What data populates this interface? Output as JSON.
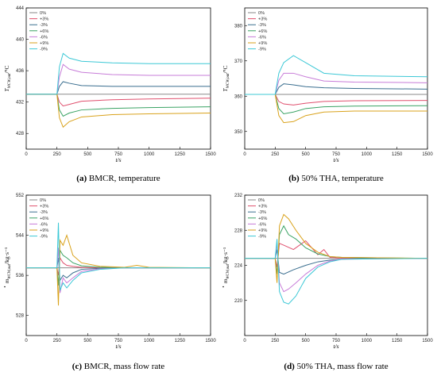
{
  "colors": {
    "0%": "#8a8a8a",
    "+3%": "#e0506e",
    "-3%": "#3a6e8f",
    "+6%": "#3aa364",
    "-6%": "#c77cd8",
    "+9%": "#d9a21b",
    "-9%": "#3cc8d6",
    "axis": "#000000"
  },
  "chart_data": [
    {
      "type": "line",
      "id": "a",
      "caption_letter": "(a)",
      "caption_text": " BMCR, temperature",
      "xlabel": "t/s",
      "ylabel_main": "T",
      "ylabel_sub": "WCW,out",
      "ylabel_unit": "/°C",
      "xlim": [
        0,
        1500
      ],
      "ylim": [
        426,
        444
      ],
      "xticks": [
        0,
        250,
        500,
        750,
        1000,
        1250,
        1500
      ],
      "yticks": [
        428,
        432,
        436,
        440,
        444
      ],
      "legend": [
        "0%",
        "+3%",
        "-3%",
        "+6%",
        "-6%",
        "+9%",
        "-9%"
      ],
      "series": [
        {
          "name": "0%",
          "x": [
            0,
            1500
          ],
          "y": [
            433.0,
            433.0
          ]
        },
        {
          "name": "+3%",
          "x": [
            0,
            250,
            270,
            300,
            350,
            450,
            700,
            1000,
            1500
          ],
          "y": [
            433.0,
            433.0,
            432.0,
            431.5,
            431.7,
            432.1,
            432.3,
            432.4,
            432.5
          ]
        },
        {
          "name": "-3%",
          "x": [
            0,
            250,
            270,
            300,
            350,
            450,
            700,
            1000,
            1500
          ],
          "y": [
            433.0,
            433.0,
            434.0,
            434.6,
            434.4,
            434.1,
            434.0,
            434.0,
            434.0
          ]
        },
        {
          "name": "+6%",
          "x": [
            0,
            250,
            270,
            300,
            350,
            450,
            700,
            1000,
            1500
          ],
          "y": [
            433.0,
            433.0,
            431.0,
            430.2,
            430.6,
            431.0,
            431.2,
            431.3,
            431.4
          ]
        },
        {
          "name": "-6%",
          "x": [
            0,
            250,
            270,
            300,
            350,
            450,
            700,
            1000,
            1500
          ],
          "y": [
            433.0,
            433.0,
            435.2,
            436.8,
            436.2,
            435.8,
            435.5,
            435.4,
            435.4
          ]
        },
        {
          "name": "+9%",
          "x": [
            0,
            250,
            270,
            300,
            350,
            450,
            700,
            1000,
            1500
          ],
          "y": [
            433.0,
            433.0,
            430.0,
            428.8,
            429.5,
            430.1,
            430.4,
            430.5,
            430.6
          ]
        },
        {
          "name": "-9%",
          "x": [
            0,
            250,
            270,
            300,
            350,
            450,
            700,
            1000,
            1500
          ],
          "y": [
            433.0,
            433.0,
            436.5,
            438.2,
            437.6,
            437.2,
            437.0,
            436.9,
            436.9
          ]
        }
      ]
    },
    {
      "type": "line",
      "id": "b",
      "caption_letter": "(b)",
      "caption_text": " 50% THA, temperature",
      "xlabel": "t/s",
      "ylabel_main": "T",
      "ylabel_sub": "WCW,out",
      "ylabel_unit": "/°C",
      "xlim": [
        0,
        1500
      ],
      "ylim": [
        345,
        385
      ],
      "xticks": [
        0,
        250,
        500,
        750,
        1000,
        1250,
        1500
      ],
      "yticks": [
        350,
        360,
        370,
        380
      ],
      "legend": [
        "0%",
        "+3%",
        "-3%",
        "+6%",
        "-6%",
        "+9%",
        "-9%"
      ],
      "series": [
        {
          "name": "0%",
          "x": [
            0,
            1500
          ],
          "y": [
            360.5,
            360.5
          ]
        },
        {
          "name": "+3%",
          "x": [
            0,
            250,
            280,
            320,
            400,
            500,
            650,
            900,
            1500
          ],
          "y": [
            360.5,
            360.5,
            358.5,
            357.8,
            357.5,
            358.0,
            358.5,
            358.7,
            358.8
          ]
        },
        {
          "name": "-3%",
          "x": [
            0,
            250,
            280,
            320,
            400,
            500,
            650,
            900,
            1500
          ],
          "y": [
            360.5,
            360.5,
            362.5,
            363.5,
            363.2,
            362.7,
            362.4,
            362.2,
            362.0
          ]
        },
        {
          "name": "+6%",
          "x": [
            0,
            250,
            280,
            320,
            400,
            500,
            650,
            900,
            1500
          ],
          "y": [
            360.5,
            360.5,
            356.5,
            355.0,
            355.5,
            356.5,
            357.0,
            357.2,
            357.3
          ]
        },
        {
          "name": "-6%",
          "x": [
            0,
            250,
            280,
            320,
            400,
            500,
            650,
            900,
            1500
          ],
          "y": [
            360.5,
            360.5,
            364.5,
            366.5,
            366.5,
            365.5,
            364.3,
            364.0,
            363.8
          ]
        },
        {
          "name": "+9%",
          "x": [
            0,
            250,
            280,
            320,
            400,
            500,
            650,
            900,
            1500
          ],
          "y": [
            360.5,
            360.5,
            354.5,
            352.5,
            352.8,
            354.5,
            355.5,
            355.8,
            355.8
          ]
        },
        {
          "name": "-9%",
          "x": [
            0,
            250,
            280,
            320,
            400,
            500,
            650,
            900,
            1500
          ],
          "y": [
            360.5,
            360.5,
            366.5,
            369.5,
            371.5,
            369.5,
            366.5,
            365.8,
            365.5
          ]
        }
      ]
    },
    {
      "type": "line",
      "id": "c",
      "caption_letter": "(c)",
      "caption_text": " BMCR, mass flow rate",
      "xlabel": "t/s",
      "ylabel_main": "m",
      "ylabel_sub": "WCW,out",
      "ylabel_unit": "/kg·s⁻¹",
      "xlim": [
        0,
        1500
      ],
      "ylim": [
        524,
        552
      ],
      "xticks": [
        0,
        250,
        500,
        750,
        1000,
        1250,
        1500
      ],
      "yticks": [
        528,
        536,
        544,
        552
      ],
      "legend": [
        "0%",
        "+3%",
        "-3%",
        "+6%",
        "-6%",
        "+9%",
        "-9%"
      ],
      "series": [
        {
          "name": "0%",
          "x": [
            0,
            1500
          ],
          "y": [
            537.5,
            537.5
          ]
        },
        {
          "name": "+3%",
          "x": [
            0,
            250,
            262,
            275,
            300,
            330,
            380,
            450,
            600,
            800,
            1000,
            1500
          ],
          "y": [
            537.5,
            537.5,
            536.0,
            539.5,
            538.5,
            538.0,
            537.8,
            537.6,
            537.5,
            537.5,
            537.5,
            537.5
          ]
        },
        {
          "name": "-3%",
          "x": [
            0,
            250,
            262,
            275,
            300,
            330,
            380,
            450,
            600,
            800,
            1000,
            1500
          ],
          "y": [
            537.5,
            537.5,
            539.5,
            535.0,
            536.0,
            535.5,
            536.5,
            537.2,
            537.4,
            537.5,
            537.5,
            537.5
          ]
        },
        {
          "name": "+6%",
          "x": [
            0,
            250,
            262,
            275,
            300,
            330,
            380,
            450,
            600,
            800,
            1000,
            1500
          ],
          "y": [
            537.5,
            537.5,
            534.0,
            541.0,
            540.0,
            539.5,
            538.5,
            537.9,
            537.6,
            537.5,
            537.5,
            537.5
          ]
        },
        {
          "name": "-6%",
          "x": [
            0,
            250,
            262,
            275,
            300,
            330,
            380,
            450,
            600,
            800,
            1000,
            1500
          ],
          "y": [
            537.5,
            537.5,
            541.5,
            532.5,
            535.5,
            534.5,
            535.5,
            536.8,
            537.3,
            537.5,
            537.5,
            537.5
          ]
        },
        {
          "name": "+9%",
          "x": [
            0,
            250,
            262,
            275,
            300,
            330,
            380,
            450,
            600,
            800,
            900,
            1000,
            1500
          ],
          "y": [
            537.5,
            537.5,
            530.0,
            543.0,
            542.0,
            544.0,
            540.0,
            538.5,
            537.8,
            537.6,
            538.0,
            537.6,
            537.5
          ]
        },
        {
          "name": "-9%",
          "x": [
            0,
            250,
            262,
            275,
            300,
            330,
            380,
            450,
            600,
            800,
            1000,
            1500
          ],
          "y": [
            537.5,
            537.5,
            546.5,
            533.0,
            534.5,
            533.5,
            535.0,
            536.5,
            537.2,
            537.5,
            537.5,
            537.5
          ]
        }
      ]
    },
    {
      "type": "line",
      "id": "d",
      "caption_letter": "(d)",
      "caption_text": " 50% THA, mass flow rate",
      "xlabel": "t/s",
      "ylabel_main": "m",
      "ylabel_sub": "WCW,out",
      "ylabel_unit": "/kg·s⁻¹",
      "xlim": [
        0,
        1500
      ],
      "ylim": [
        216,
        232
      ],
      "xticks": [
        0,
        250,
        500,
        750,
        1000,
        1250,
        1500
      ],
      "yticks": [
        220,
        224,
        228,
        232
      ],
      "legend": [
        "0%",
        "+3%",
        "-3%",
        "+6%",
        "-6%",
        "+9%",
        "-9%"
      ],
      "series": [
        {
          "name": "0%",
          "x": [
            0,
            1500
          ],
          "y": [
            224.8,
            224.8
          ]
        },
        {
          "name": "+3%",
          "x": [
            0,
            250,
            265,
            285,
            320,
            400,
            500,
            600,
            650,
            700,
            800,
            1500
          ],
          "y": [
            224.8,
            224.8,
            223.8,
            226.5,
            226.3,
            225.8,
            226.8,
            225.2,
            225.8,
            224.9,
            224.8,
            224.8
          ]
        },
        {
          "name": "-3%",
          "x": [
            0,
            250,
            265,
            285,
            320,
            400,
            500,
            600,
            700,
            800,
            1000,
            1500
          ],
          "y": [
            224.8,
            224.8,
            225.8,
            223.2,
            223.0,
            223.5,
            224.0,
            224.4,
            224.6,
            224.7,
            224.8,
            224.8
          ]
        },
        {
          "name": "+6%",
          "x": [
            0,
            250,
            265,
            285,
            320,
            360,
            420,
            500,
            600,
            700,
            800,
            1500
          ],
          "y": [
            224.8,
            224.8,
            223.0,
            227.5,
            228.5,
            227.5,
            227.0,
            226.0,
            225.3,
            225.0,
            224.9,
            224.8
          ]
        },
        {
          "name": "-6%",
          "x": [
            0,
            250,
            265,
            285,
            320,
            360,
            420,
            500,
            600,
            700,
            800,
            1500
          ],
          "y": [
            224.8,
            224.8,
            226.5,
            222.0,
            221.0,
            221.3,
            222.0,
            223.0,
            224.0,
            224.5,
            224.7,
            224.8
          ]
        },
        {
          "name": "+9%",
          "x": [
            0,
            250,
            265,
            285,
            320,
            360,
            420,
            500,
            600,
            700,
            800,
            1500
          ],
          "y": [
            224.8,
            224.8,
            222.0,
            228.5,
            229.8,
            229.3,
            228.0,
            226.5,
            225.5,
            225.0,
            224.9,
            224.8
          ]
        },
        {
          "name": "-9%",
          "x": [
            0,
            250,
            265,
            285,
            320,
            360,
            420,
            500,
            600,
            700,
            800,
            1500
          ],
          "y": [
            224.8,
            224.8,
            227.0,
            221.0,
            219.8,
            219.6,
            220.5,
            222.5,
            223.8,
            224.4,
            224.7,
            224.8
          ]
        }
      ]
    }
  ]
}
